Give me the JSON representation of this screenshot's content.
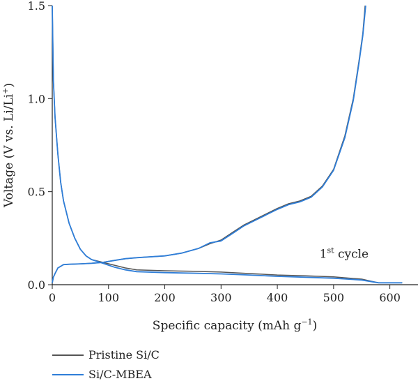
{
  "chart_data": {
    "type": "line",
    "xlabel": {
      "main": "Specific capacity (mAh g",
      "sup": "−1",
      "end": ")"
    },
    "ylabel": {
      "main": "Voltage (V vs. Li/Li",
      "sup": "+",
      "end": ")"
    },
    "xlim": [
      0,
      650
    ],
    "ylim": [
      0,
      1.5
    ],
    "xticks": [
      "0",
      "100",
      "200",
      "300",
      "400",
      "500",
      "600"
    ],
    "yticks": [
      "0.0",
      "0.5",
      "1.0",
      "1.5"
    ],
    "annotation": {
      "main": "1",
      "sup": "st",
      "end": " cycle",
      "x": 475,
      "y": 0.145
    },
    "legend_position": "bottom-left",
    "grid": false,
    "series": [
      {
        "name": "Pristine Si/C",
        "color": "#555555",
        "discharge": [
          [
            0,
            1.5
          ],
          [
            1,
            1.3
          ],
          [
            2,
            1.1
          ],
          [
            5,
            0.9
          ],
          [
            10,
            0.7
          ],
          [
            15,
            0.55
          ],
          [
            20,
            0.45
          ],
          [
            30,
            0.33
          ],
          [
            40,
            0.25
          ],
          [
            50,
            0.19
          ],
          [
            60,
            0.155
          ],
          [
            70,
            0.135
          ],
          [
            90,
            0.12
          ],
          [
            110,
            0.105
          ],
          [
            130,
            0.09
          ],
          [
            150,
            0.08
          ],
          [
            200,
            0.075
          ],
          [
            250,
            0.072
          ],
          [
            300,
            0.068
          ],
          [
            350,
            0.06
          ],
          [
            400,
            0.052
          ],
          [
            450,
            0.048
          ],
          [
            500,
            0.042
          ],
          [
            550,
            0.03
          ],
          [
            580,
            0.01
          ],
          [
            622,
            0.01
          ]
        ],
        "charge": [
          [
            0,
            0.01
          ],
          [
            2,
            0.04
          ],
          [
            5,
            0.06
          ],
          [
            10,
            0.09
          ],
          [
            20,
            0.108
          ],
          [
            30,
            0.11
          ],
          [
            50,
            0.112
          ],
          [
            70,
            0.115
          ],
          [
            90,
            0.12
          ],
          [
            110,
            0.13
          ],
          [
            130,
            0.14
          ],
          [
            150,
            0.145
          ],
          [
            200,
            0.155
          ],
          [
            230,
            0.17
          ],
          [
            260,
            0.195
          ],
          [
            280,
            0.22
          ],
          [
            300,
            0.24
          ],
          [
            320,
            0.28
          ],
          [
            340,
            0.32
          ],
          [
            360,
            0.35
          ],
          [
            380,
            0.38
          ],
          [
            400,
            0.41
          ],
          [
            420,
            0.435
          ],
          [
            440,
            0.45
          ],
          [
            460,
            0.475
          ],
          [
            480,
            0.53
          ],
          [
            500,
            0.62
          ],
          [
            520,
            0.8
          ],
          [
            535,
            1.0
          ],
          [
            545,
            1.2
          ],
          [
            552,
            1.35
          ],
          [
            556,
            1.5
          ]
        ]
      },
      {
        "name": "Si/C-MBEA",
        "color": "#2f7ed8",
        "discharge": [
          [
            0,
            1.5
          ],
          [
            1,
            1.3
          ],
          [
            2,
            1.1
          ],
          [
            5,
            0.9
          ],
          [
            10,
            0.7
          ],
          [
            15,
            0.55
          ],
          [
            20,
            0.45
          ],
          [
            30,
            0.33
          ],
          [
            40,
            0.25
          ],
          [
            50,
            0.19
          ],
          [
            60,
            0.155
          ],
          [
            70,
            0.135
          ],
          [
            90,
            0.115
          ],
          [
            110,
            0.095
          ],
          [
            130,
            0.08
          ],
          [
            150,
            0.07
          ],
          [
            200,
            0.065
          ],
          [
            250,
            0.062
          ],
          [
            300,
            0.058
          ],
          [
            350,
            0.052
          ],
          [
            400,
            0.045
          ],
          [
            450,
            0.04
          ],
          [
            500,
            0.035
          ],
          [
            550,
            0.025
          ],
          [
            580,
            0.01
          ],
          [
            622,
            0.01
          ]
        ],
        "charge": [
          [
            0,
            0.01
          ],
          [
            2,
            0.04
          ],
          [
            5,
            0.06
          ],
          [
            10,
            0.09
          ],
          [
            20,
            0.108
          ],
          [
            30,
            0.11
          ],
          [
            50,
            0.112
          ],
          [
            70,
            0.115
          ],
          [
            90,
            0.12
          ],
          [
            110,
            0.13
          ],
          [
            130,
            0.14
          ],
          [
            150,
            0.145
          ],
          [
            200,
            0.155
          ],
          [
            230,
            0.17
          ],
          [
            260,
            0.195
          ],
          [
            280,
            0.225
          ],
          [
            300,
            0.235
          ],
          [
            320,
            0.275
          ],
          [
            340,
            0.315
          ],
          [
            360,
            0.345
          ],
          [
            380,
            0.375
          ],
          [
            400,
            0.405
          ],
          [
            420,
            0.43
          ],
          [
            440,
            0.445
          ],
          [
            460,
            0.47
          ],
          [
            480,
            0.525
          ],
          [
            500,
            0.615
          ],
          [
            520,
            0.79
          ],
          [
            535,
            0.99
          ],
          [
            545,
            1.19
          ],
          [
            552,
            1.34
          ],
          [
            557,
            1.5
          ]
        ]
      }
    ]
  }
}
